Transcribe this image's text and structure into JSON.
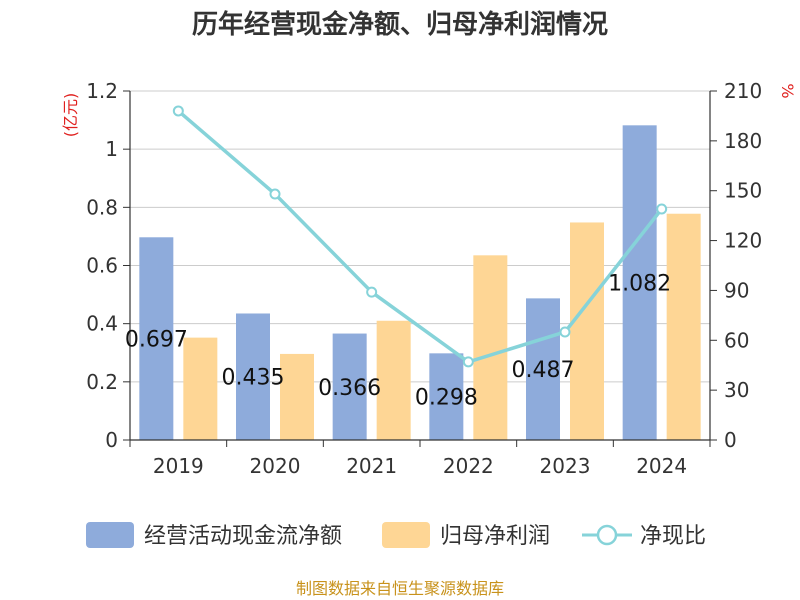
{
  "chart_data": {
    "type": "bar",
    "title": "历年经营现金净额、归母净利润情况",
    "categories": [
      "2019",
      "2020",
      "2021",
      "2022",
      "2023",
      "2024"
    ],
    "series": [
      {
        "name": "经营活动现金流净额",
        "kind": "bar",
        "axis": "left",
        "color": "#8eabdb",
        "values": [
          0.697,
          0.435,
          0.366,
          0.298,
          0.487,
          1.082
        ]
      },
      {
        "name": "归母净利润",
        "kind": "bar",
        "axis": "left",
        "color": "#fed695",
        "values": [
          0.352,
          0.296,
          0.41,
          0.635,
          0.748,
          0.778
        ]
      },
      {
        "name": "净现比",
        "kind": "line",
        "axis": "right",
        "color": "#86d3d9",
        "values": [
          198,
          148,
          89,
          47,
          65,
          139
        ]
      }
    ],
    "bar_labels": [
      "0.697",
      "0.435",
      "0.366",
      "0.298",
      "0.487",
      "1.082"
    ],
    "y_left": {
      "label": "(亿元)",
      "range": [
        0,
        1.2
      ],
      "ticks": [
        "0",
        "0.2",
        "0.4",
        "0.6",
        "0.8",
        "1",
        "1.2"
      ]
    },
    "y_right": {
      "label": "%",
      "range": [
        0,
        210
      ],
      "ticks": [
        "0",
        "30",
        "60",
        "90",
        "120",
        "150",
        "180",
        "210"
      ]
    },
    "grid": true,
    "legend_position": "bottom",
    "source": "制图数据来自恒生聚源数据库"
  }
}
